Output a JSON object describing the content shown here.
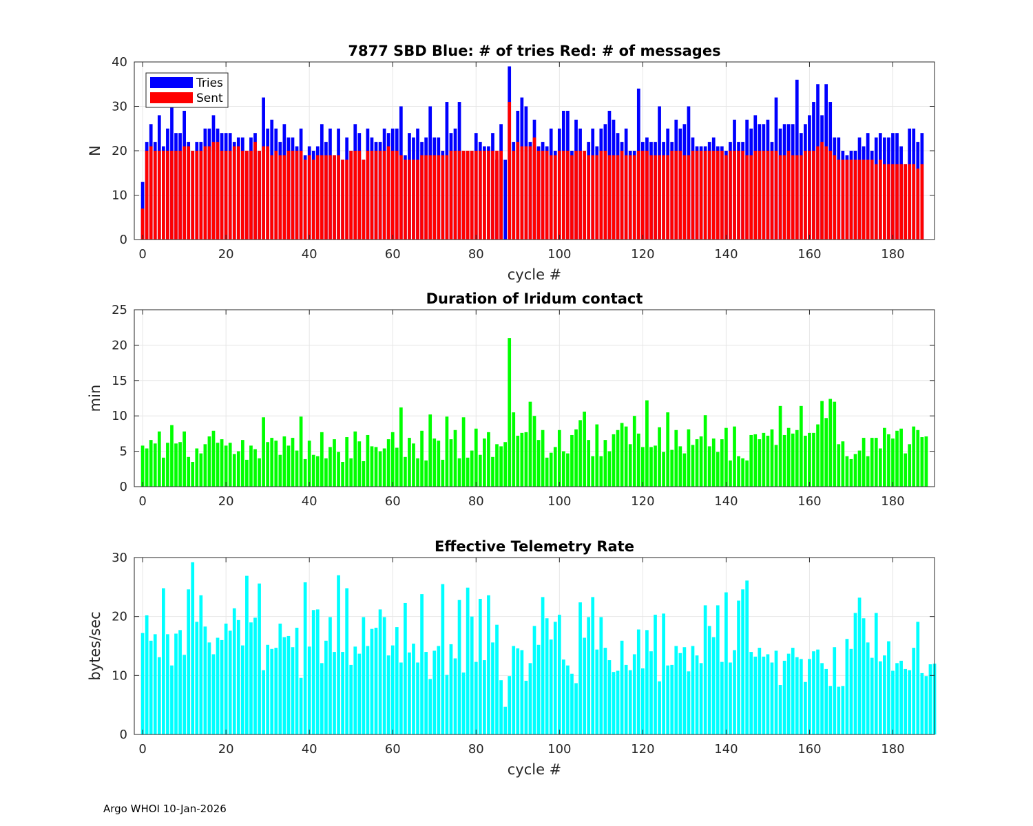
{
  "footer": "Argo WHOI 10-Jan-2026",
  "chart_data": [
    {
      "type": "bar",
      "stacked": "overlay",
      "title": "7877 SBD  Blue: # of tries   Red: # of messages",
      "xlabel": "cycle #",
      "ylabel": "N",
      "xlim": [
        -2,
        190
      ],
      "ylim": [
        0,
        40
      ],
      "xticks": [
        0,
        20,
        40,
        60,
        80,
        100,
        120,
        140,
        160,
        180
      ],
      "yticks": [
        0,
        10,
        20,
        30,
        40
      ],
      "grid": true,
      "legend": {
        "position": "top-left",
        "entries": [
          "Tries",
          "Sent"
        ]
      },
      "x_start": 0,
      "series": [
        {
          "name": "Tries",
          "color": "#0000ff",
          "values": [
            13,
            22,
            26,
            22,
            28,
            21,
            25,
            30,
            24,
            24,
            29,
            22,
            20,
            22,
            22,
            25,
            25,
            28,
            25,
            24,
            24,
            24,
            22,
            23,
            23,
            20,
            23,
            24,
            20,
            32,
            25,
            27,
            25,
            22,
            26,
            23,
            23,
            21,
            25,
            19,
            21,
            20,
            21,
            26,
            22,
            25,
            19,
            25,
            18,
            23,
            20,
            26,
            24,
            18,
            25,
            23,
            22,
            22,
            25,
            24,
            25,
            25,
            30,
            19,
            24,
            23,
            25,
            22,
            23,
            30,
            23,
            23,
            20,
            31,
            24,
            25,
            31,
            20,
            20,
            20,
            24,
            22,
            21,
            21,
            24,
            18,
            26,
            18,
            39,
            22,
            29,
            32,
            30,
            22,
            27,
            21,
            22,
            21,
            25,
            20,
            25,
            29,
            29,
            20,
            27,
            25,
            18,
            22,
            25,
            21,
            25,
            26,
            29,
            27,
            24,
            22,
            25,
            20,
            20,
            34,
            22,
            23,
            22,
            22,
            30,
            22,
            25,
            22,
            27,
            25,
            26,
            30,
            23,
            21,
            21,
            21,
            22,
            23,
            21,
            21,
            20,
            22,
            27,
            22,
            22,
            27,
            25,
            28,
            26,
            26,
            27,
            22,
            32,
            25,
            26,
            26,
            26,
            36,
            24,
            26,
            28,
            31,
            35,
            28,
            35,
            31,
            23,
            23,
            20,
            19,
            20,
            20,
            23,
            21,
            24,
            20,
            23,
            24,
            23,
            23,
            24,
            24,
            21,
            17,
            25,
            25,
            22,
            24
          ]
        },
        {
          "name": "Sent",
          "color": "#ff0000",
          "values": [
            7,
            20,
            21,
            20,
            20,
            20,
            20,
            20,
            20,
            20,
            21,
            21,
            20,
            20,
            20,
            21,
            21,
            22,
            22,
            20,
            20,
            20,
            21,
            21,
            20,
            20,
            20,
            22,
            20,
            21,
            21,
            19,
            20,
            19,
            19,
            20,
            20,
            20,
            20,
            18,
            19,
            18,
            19,
            19,
            19,
            19,
            19,
            19,
            18,
            18,
            20,
            20,
            20,
            18,
            20,
            20,
            20,
            20,
            20,
            21,
            20,
            20,
            19,
            18,
            18,
            18,
            18,
            19,
            19,
            19,
            19,
            19,
            19,
            19,
            20,
            20,
            20,
            20,
            20,
            20,
            20,
            20,
            20,
            20,
            20,
            20,
            20,
            0,
            31,
            20,
            22,
            21,
            21,
            21,
            23,
            20,
            20,
            20,
            19,
            19,
            20,
            20,
            20,
            19,
            20,
            20,
            20,
            19,
            19,
            19,
            20,
            20,
            19,
            19,
            19,
            20,
            19,
            19,
            19,
            20,
            20,
            20,
            19,
            19,
            19,
            19,
            19,
            20,
            20,
            20,
            19,
            19,
            20,
            20,
            20,
            20,
            20,
            20,
            20,
            20,
            19,
            20,
            20,
            20,
            20,
            19,
            19,
            20,
            20,
            20,
            20,
            20,
            20,
            19,
            19,
            20,
            19,
            19,
            19,
            20,
            20,
            20,
            21,
            22,
            21,
            20,
            19,
            18,
            18,
            18,
            18,
            18,
            18,
            18,
            18,
            18,
            17,
            18,
            17,
            17,
            17,
            17,
            17,
            17,
            17,
            17,
            16,
            17
          ]
        }
      ]
    },
    {
      "type": "bar",
      "title": "Duration of Iridum contact",
      "xlabel": "",
      "ylabel": "min",
      "xlim": [
        -2,
        190
      ],
      "ylim": [
        0,
        25
      ],
      "xticks": [
        0,
        20,
        40,
        60,
        80,
        100,
        120,
        140,
        160,
        180
      ],
      "yticks": [
        0,
        5,
        10,
        15,
        20,
        25
      ],
      "grid": true,
      "x_start": 0,
      "series": [
        {
          "name": "duration",
          "color": "#00ff00",
          "values": [
            5.8,
            5.4,
            6.6,
            6.1,
            7.8,
            4.1,
            6.2,
            8.7,
            6.1,
            6.3,
            7.8,
            4.2,
            3.5,
            5.4,
            4.7,
            6.0,
            7.1,
            7.9,
            6.2,
            6.7,
            5.8,
            6.2,
            4.6,
            5.0,
            6.6,
            3.8,
            5.8,
            5.3,
            4.0,
            9.8,
            6.3,
            6.9,
            6.5,
            4.5,
            7.1,
            5.8,
            6.9,
            5.1,
            9.9,
            3.9,
            6.5,
            4.5,
            4.3,
            7.7,
            4.0,
            5.6,
            6.7,
            4.9,
            3.5,
            7.0,
            4.0,
            7.8,
            6.4,
            3.6,
            7.3,
            5.7,
            5.6,
            5.0,
            5.4,
            6.7,
            7.7,
            5.5,
            11.2,
            4.2,
            6.9,
            6.1,
            4.0,
            7.9,
            3.7,
            10.2,
            6.8,
            6.5,
            3.8,
            9.9,
            6.7,
            8.0,
            4.0,
            9.8,
            4.1,
            5.1,
            8.2,
            4.5,
            6.8,
            7.7,
            4.2,
            6.0,
            5.7,
            6.3,
            21.0,
            10.5,
            7.2,
            7.6,
            7.7,
            12.0,
            10.0,
            6.6,
            8.0,
            4.1,
            4.8,
            5.6,
            8.0,
            5.0,
            4.7,
            7.3,
            8.1,
            9.4,
            10.6,
            6.6,
            4.3,
            8.8,
            4.3,
            6.6,
            5.0,
            7.4,
            8.0,
            9.0,
            8.5,
            6.0,
            10.0,
            7.5,
            5.6,
            12.2,
            5.6,
            5.8,
            8.4,
            4.9,
            10.5,
            5.2,
            8.0,
            5.7,
            4.7,
            8.1,
            5.9,
            6.7,
            7.1,
            10.1,
            5.7,
            6.8,
            4.9,
            6.7,
            8.3,
            3.7,
            8.5,
            4.3,
            4.0,
            3.7,
            7.3,
            7.4,
            6.7,
            7.6,
            7.2,
            8.1,
            5.9,
            11.4,
            7.3,
            8.3,
            7.5,
            8.0,
            11.4,
            7.2,
            7.6,
            7.6,
            8.8,
            12.1,
            9.7,
            12.4,
            12.0,
            6.0,
            6.4,
            4.3,
            3.9,
            4.6,
            5.1,
            6.9,
            4.3,
            6.9,
            6.9,
            5.4,
            8.3,
            7.4,
            6.8,
            7.9,
            8.2,
            4.7,
            6.0,
            8.5,
            8.0,
            7.0,
            7.1
          ]
        }
      ]
    },
    {
      "type": "bar",
      "title": "Effective Telemetry Rate",
      "xlabel": "cycle #",
      "ylabel": "bytes/sec",
      "xlim": [
        -2,
        190
      ],
      "ylim": [
        0,
        30
      ],
      "xticks": [
        0,
        20,
        40,
        60,
        80,
        100,
        120,
        140,
        160,
        180
      ],
      "yticks": [
        0,
        10,
        20,
        30
      ],
      "grid": true,
      "x_start": 0,
      "series": [
        {
          "name": "rate",
          "color": "#00ffff",
          "values": [
            17.2,
            20.2,
            15.9,
            17.0,
            13.1,
            24.8,
            17.0,
            11.7,
            17.1,
            17.7,
            13.5,
            24.6,
            29.2,
            19.1,
            23.6,
            18.3,
            15.6,
            13.6,
            16.4,
            16.0,
            18.8,
            17.6,
            21.4,
            19.4,
            15.1,
            26.9,
            19.0,
            19.8,
            25.6,
            10.9,
            15.2,
            14.5,
            14.7,
            18.8,
            16.5,
            16.7,
            14.8,
            18.1,
            9.6,
            25.8,
            14.9,
            21.1,
            21.2,
            12.1,
            15.9,
            19.9,
            14.0,
            27.0,
            14.0,
            24.8,
            11.8,
            14.9,
            13.7,
            19.9,
            15.0,
            17.9,
            18.1,
            21.2,
            19.9,
            13.4,
            15.1,
            18.2,
            12.2,
            22.3,
            13.9,
            15.4,
            12.2,
            23.8,
            14.0,
            9.4,
            14.2,
            15.0,
            25.5,
            10.1,
            15.3,
            12.9,
            22.8,
            10.5,
            24.9,
            20.0,
            12.3,
            23.0,
            12.6,
            23.6,
            15.6,
            18.6,
            9.2,
            4.7,
            9.9,
            15.0,
            14.6,
            14.3,
            9.1,
            12.1,
            18.4,
            15.2,
            23.3,
            19.7,
            16.1,
            19.1,
            20.3,
            12.7,
            11.7,
            10.3,
            8.7,
            22.4,
            16.4,
            19.9,
            23.3,
            14.4,
            19.9,
            14.7,
            12.6,
            10.6,
            10.8,
            15.9,
            11.8,
            10.9,
            13.6,
            17.8,
            11.2,
            17.7,
            14.1,
            20.3,
            9.0,
            20.5,
            11.7,
            11.8,
            15.0,
            13.8,
            14.8,
            10.7,
            15.0,
            13.4,
            12.1,
            21.9,
            18.4,
            16.5,
            21.9,
            12.3,
            24.1,
            12.2,
            14.3,
            22.7,
            24.6,
            26.1,
            14.0,
            13.2,
            14.7,
            13.2,
            13.6,
            12.2,
            14.2,
            8.4,
            12.5,
            13.7,
            14.7,
            13.1,
            12.8,
            8.9,
            12.8,
            14.1,
            14.4,
            12.1,
            11.1,
            8.2,
            14.8,
            8.1,
            8.2,
            16.2,
            14.5,
            20.6,
            23.2,
            19.7,
            15.6,
            13.0,
            20.6,
            12.4,
            13.4,
            15.8,
            10.8,
            12.1,
            12.5,
            11.1,
            10.9,
            14.7,
            19.1,
            10.4,
            9.9,
            11.9,
            12.0
          ]
        }
      ]
    }
  ]
}
